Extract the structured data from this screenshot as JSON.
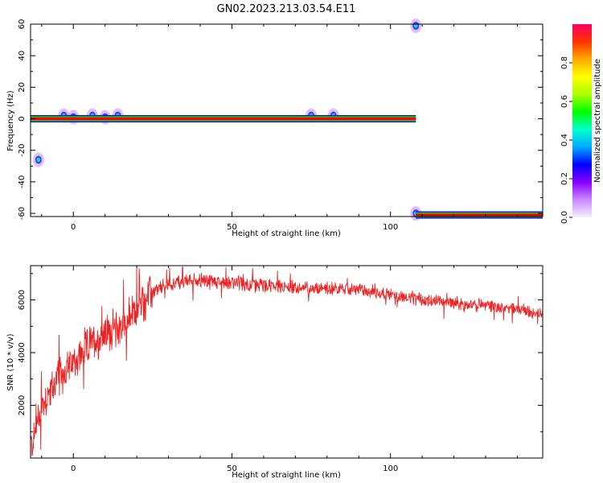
{
  "figure": {
    "title": "GN02.2023.213.03.54.E11"
  },
  "colors": {
    "snr_line": "#ee2222",
    "axis": "#000000",
    "band_red": "#ff0000",
    "band_green": "#00ee00",
    "band_blue": "#0000ff",
    "cmap": [
      "#f0f0ff",
      "#cc88ff",
      "#8800ff",
      "#0000ff",
      "#00aaff",
      "#00ffcc",
      "#00ff00",
      "#aaff00",
      "#ffff00",
      "#ffaa00",
      "#ff3300",
      "#ff0066"
    ]
  },
  "chart_data": [
    {
      "type": "heatmap",
      "name": "spectrogram",
      "xlabel": "Height of straight line (km)",
      "ylabel": "Frequency (Hz)",
      "xlim": [
        -13.5,
        148
      ],
      "ylim": [
        -62,
        60
      ],
      "xticks": [
        0,
        50,
        100
      ],
      "yticks": [
        -60,
        -40,
        -20,
        0,
        20,
        40,
        60
      ],
      "band": {
        "freq": 0,
        "x_start": -13.5,
        "x_end": 108
      },
      "aliased_band": {
        "freq": -61,
        "x_start": 108,
        "x_end": 148
      },
      "blobs": [
        {
          "x": -3,
          "f": 2
        },
        {
          "x": 0,
          "f": 1
        },
        {
          "x": 6,
          "f": 2
        },
        {
          "x": 10,
          "f": 1
        },
        {
          "x": 14,
          "f": 2
        },
        {
          "x": -11,
          "f": -26
        },
        {
          "x": 75,
          "f": 2
        },
        {
          "x": 82,
          "f": 2
        },
        {
          "x": 108,
          "f": 59
        },
        {
          "x": 108,
          "f": -60
        }
      ],
      "colorbar": {
        "label": "Normalized spectral amplitude",
        "range": [
          0,
          1
        ],
        "ticks": [
          "0.0",
          "0.2",
          "0.4",
          "0.6",
          "0.8"
        ]
      }
    },
    {
      "type": "line",
      "name": "snr",
      "xlabel": "Height of straight line (km)",
      "ylabel": "SNR (10 * v/v)",
      "xlim": [
        -13.5,
        148
      ],
      "ylim": [
        0,
        7300
      ],
      "xticks": [
        0,
        50,
        100
      ],
      "yticks": [
        2000,
        4000,
        6000
      ],
      "trend": {
        "x": [
          -13,
          -10,
          -5,
          0,
          5,
          10,
          15,
          20,
          25,
          30,
          35,
          40,
          45,
          50,
          55,
          60,
          65,
          70,
          75,
          80,
          85,
          90,
          95,
          100,
          105,
          110,
          115,
          120,
          125,
          130,
          135,
          140,
          145,
          148
        ],
        "y": [
          500,
          2000,
          3000,
          3600,
          4300,
          4700,
          5000,
          5600,
          6300,
          6600,
          6700,
          6750,
          6700,
          6650,
          6600,
          6550,
          6500,
          6450,
          6450,
          6450,
          6400,
          6400,
          6300,
          6200,
          6100,
          6000,
          5950,
          5900,
          5800,
          5800,
          5700,
          5650,
          5550,
          5500
        ]
      }
    }
  ]
}
